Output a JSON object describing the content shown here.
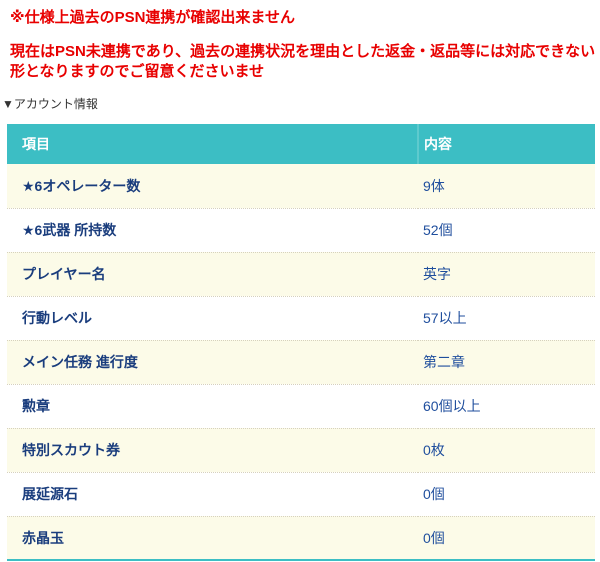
{
  "warnings": {
    "line1": "※仕様上過去のPSN連携が確認出来ません",
    "line2": "現在はPSN未連携であり、過去の連携状況を理由とした返金・返品等には対応できない形となりますのでご留意くださいませ"
  },
  "section": {
    "title": "▼アカウント情報"
  },
  "table": {
    "headers": [
      "項目",
      "内容"
    ],
    "rows": [
      {
        "item": "★6オペレーター数",
        "value": "9体"
      },
      {
        "item": "★6武器 所持数",
        "value": "52個"
      },
      {
        "item": "プレイヤー名",
        "value": "英字"
      },
      {
        "item": "行動レベル",
        "value": "57以上"
      },
      {
        "item": "メイン任務 進行度",
        "value": "第二章"
      },
      {
        "item": "勲章",
        "value": "60個以上"
      },
      {
        "item": "特別スカウト券",
        "value": "0枚"
      },
      {
        "item": "展延源石",
        "value": "0個"
      },
      {
        "item": "赤晶玉",
        "value": "0個"
      }
    ]
  },
  "colors": {
    "warning_red": "#e80000",
    "header_teal": "#3cbec4",
    "row_alt_cream": "#fcfbe8",
    "item_label_navy": "#1a3d7d",
    "value_blue": "#1f4e9d"
  }
}
